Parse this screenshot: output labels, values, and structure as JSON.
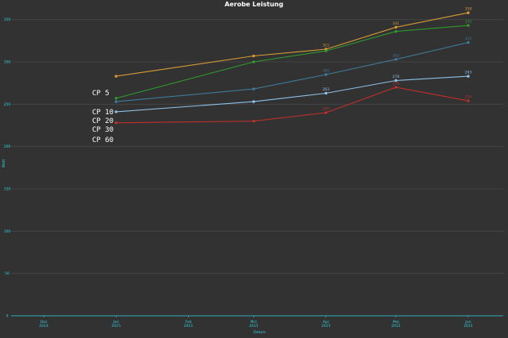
{
  "chart_data": {
    "type": "line",
    "title": "Aerobe Leistung",
    "xlabel": "Datum",
    "ylabel": "Watt",
    "x_ticks": [
      {
        "month": "Dez",
        "year": "2014",
        "date": "2014-12-01"
      },
      {
        "month": "Jan",
        "year": "2015",
        "date": "2015-01-01"
      },
      {
        "month": "Feb",
        "year": "2015",
        "date": "2015-02-01"
      },
      {
        "month": "Mrz",
        "year": "2015",
        "date": "2015-03-01"
      },
      {
        "month": "Apr",
        "year": "2015",
        "date": "2015-04-01"
      },
      {
        "month": "Mai",
        "year": "2015",
        "date": "2015-05-01"
      },
      {
        "month": "Jun",
        "year": "2015",
        "date": "2015-06-01"
      }
    ],
    "xlim": [
      "2014-11-17",
      "2015-06-16"
    ],
    "y_ticks": [
      0,
      50,
      100,
      150,
      200,
      250,
      300,
      350
    ],
    "ylim": [
      0,
      360
    ],
    "grid": true,
    "x": [
      "2015-01-01",
      "2015-03-01",
      "2015-04-01",
      "2015-05-01",
      "2015-06-01"
    ],
    "series": [
      {
        "name": "CP 5",
        "color": "#d99b35",
        "values": [
          283,
          307,
          315,
          341,
          358
        ],
        "labels": [
          null,
          null,
          "315",
          "341",
          "358"
        ]
      },
      {
        "name": "CP 10",
        "color": "#2f9a2f",
        "values": [
          257,
          300,
          313,
          336,
          343
        ],
        "labels": [
          null,
          null,
          null,
          null,
          "343"
        ]
      },
      {
        "name": "CP 20",
        "color": "#3f7a9c",
        "values": [
          253,
          268,
          285,
          303,
          323
        ],
        "labels": [
          null,
          null,
          "285",
          "303",
          "323"
        ]
      },
      {
        "name": "CP 30",
        "color": "#8ec1e8",
        "values": [
          241,
          253,
          263,
          278,
          283
        ],
        "labels": [
          null,
          null,
          "263",
          "278",
          "283"
        ]
      },
      {
        "name": "CP 60",
        "color": "#c0302a",
        "values": [
          228,
          230,
          240,
          270,
          254
        ],
        "labels": [
          null,
          null,
          "240",
          "270",
          "254"
        ]
      }
    ]
  }
}
